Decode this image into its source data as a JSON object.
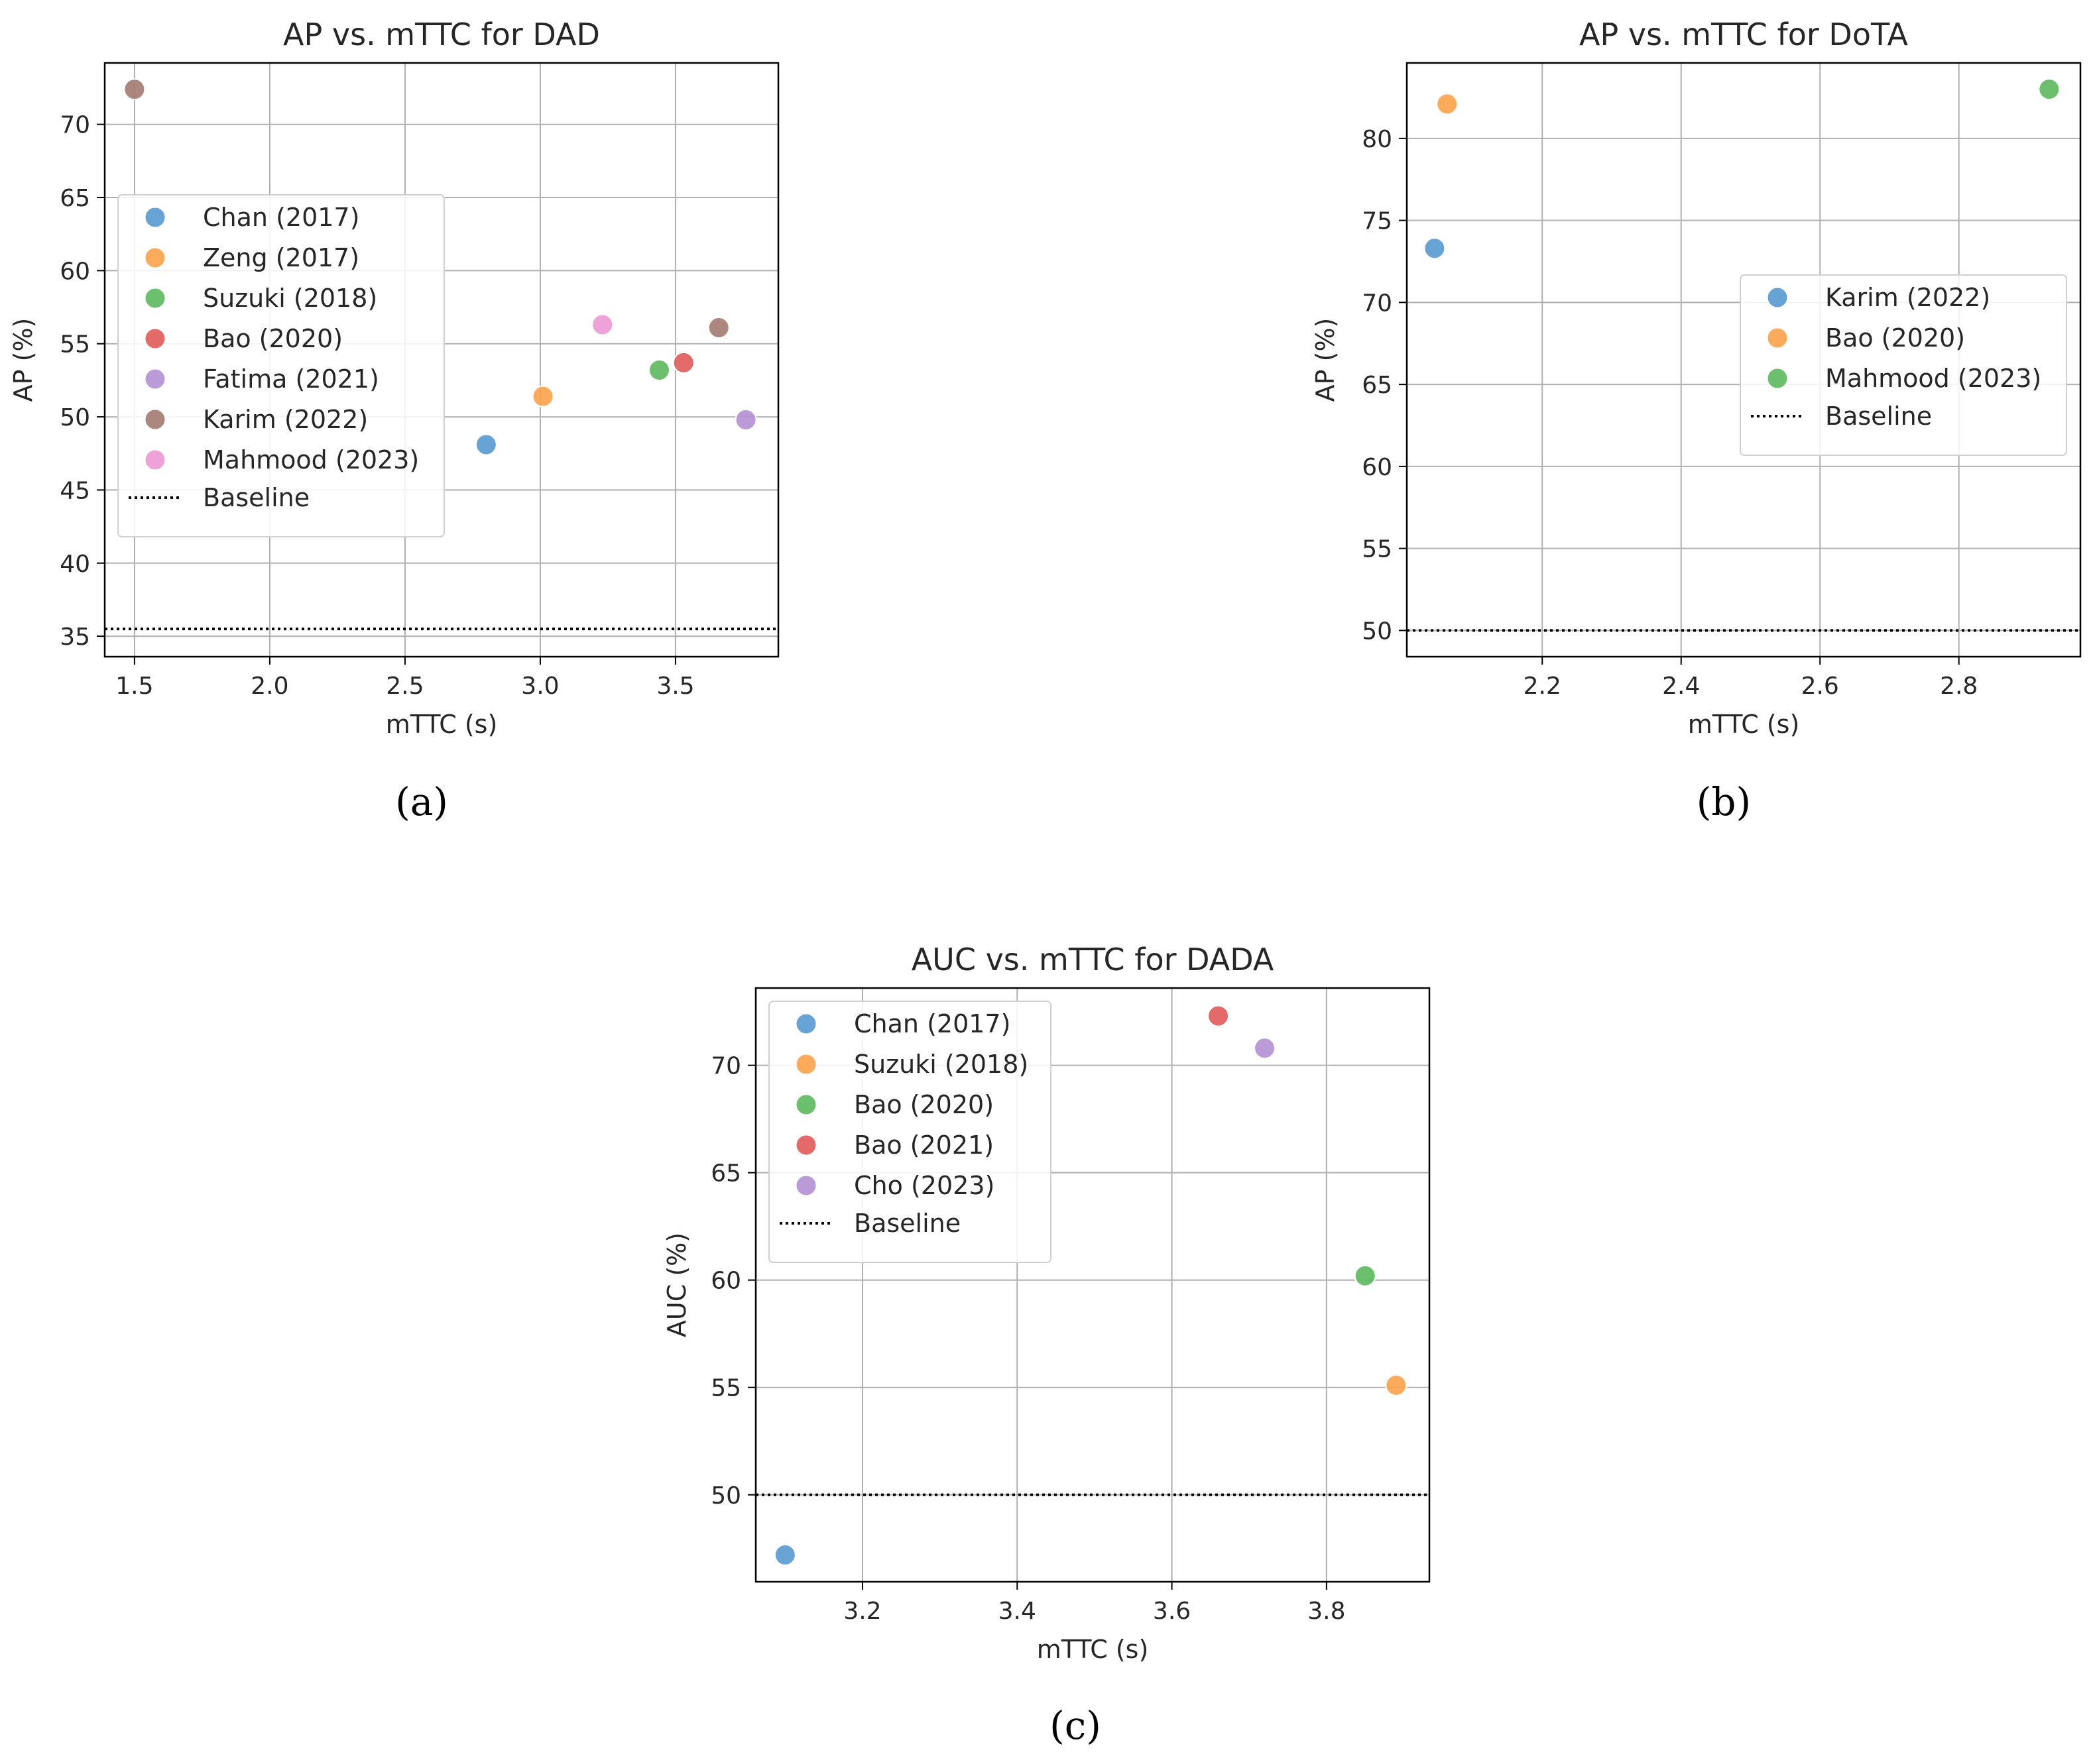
{
  "chart_data": [
    {
      "type": "scatter",
      "title": "AP vs. mTTC for DAD",
      "xlabel": "mTTC (s)",
      "ylabel": "AP (%)",
      "xlim": [
        1.39,
        3.88
      ],
      "ylim": [
        33.6,
        74.2
      ],
      "xticks": [
        1.5,
        2.0,
        2.5,
        3.0,
        3.5
      ],
      "xtick_labels": [
        "1.5",
        "2.0",
        "2.5",
        "3.0",
        "3.5"
      ],
      "yticks": [
        35,
        40,
        45,
        50,
        55,
        60,
        65,
        70
      ],
      "ytick_labels": [
        "35",
        "40",
        "45",
        "50",
        "55",
        "60",
        "65",
        "70"
      ],
      "grid": true,
      "legend_position": "center-left",
      "baseline_label": "Baseline",
      "baseline": 35.5,
      "caption": "(a)",
      "points": [
        {
          "name": "Chan (2017)",
          "x": 2.8,
          "y": 48.1,
          "color": "#5a9bd0"
        },
        {
          "name": "Zeng (2017)",
          "x": 3.01,
          "y": 51.4,
          "color": "#fca34d"
        },
        {
          "name": "Suzuki (2018)",
          "x": 3.44,
          "y": 53.2,
          "color": "#5fba5f"
        },
        {
          "name": "Bao (2020)",
          "x": 3.53,
          "y": 53.7,
          "color": "#e25c5c"
        },
        {
          "name": "Fatima (2021)",
          "x": 3.76,
          "y": 49.8,
          "color": "#b493d4"
        },
        {
          "name": "Karim (2022)",
          "x": 1.5,
          "y": 72.4,
          "color": "#a57d74"
        },
        {
          "name": "Karim (2022)",
          "x": 3.66,
          "y": 56.1,
          "color": "#a57d74"
        },
        {
          "name": "Mahmood (2023)",
          "x": 3.23,
          "y": 56.3,
          "color": "#ee9ad5"
        }
      ],
      "legend": [
        {
          "name": "Chan (2017)",
          "color": "#5a9bd0"
        },
        {
          "name": "Zeng (2017)",
          "color": "#fca34d"
        },
        {
          "name": "Suzuki (2018)",
          "color": "#5fba5f"
        },
        {
          "name": "Bao (2020)",
          "color": "#e25c5c"
        },
        {
          "name": "Fatima (2021)",
          "color": "#b493d4"
        },
        {
          "name": "Karim (2022)",
          "color": "#a57d74"
        },
        {
          "name": "Mahmood (2023)",
          "color": "#ee9ad5"
        }
      ]
    },
    {
      "type": "scatter",
      "title": "AP vs. mTTC for DoTA",
      "xlabel": "mTTC (s)",
      "ylabel": "AP (%)",
      "xlim": [
        2.005,
        2.975
      ],
      "ylim": [
        48.4,
        84.6
      ],
      "xticks": [
        2.2,
        2.4,
        2.6,
        2.8
      ],
      "xtick_labels": [
        "2.2",
        "2.4",
        "2.6",
        "2.8"
      ],
      "yticks": [
        50,
        55,
        60,
        65,
        70,
        75,
        80
      ],
      "ytick_labels": [
        "50",
        "55",
        "60",
        "65",
        "70",
        "75",
        "80"
      ],
      "grid": true,
      "legend_position": "center-right",
      "baseline_label": "Baseline",
      "baseline": 50.0,
      "caption": "(b)",
      "points": [
        {
          "name": "Karim (2022)",
          "x": 2.045,
          "y": 73.3,
          "color": "#5a9bd0"
        },
        {
          "name": "Bao (2020)",
          "x": 2.063,
          "y": 82.1,
          "color": "#fca34d"
        },
        {
          "name": "Mahmood (2023)",
          "x": 2.93,
          "y": 83.0,
          "color": "#5fba5f"
        }
      ],
      "legend": [
        {
          "name": "Karim (2022)",
          "color": "#5a9bd0"
        },
        {
          "name": "Bao (2020)",
          "color": "#fca34d"
        },
        {
          "name": "Mahmood (2023)",
          "color": "#5fba5f"
        }
      ]
    },
    {
      "type": "scatter",
      "title": "AUC vs. mTTC for DADA",
      "xlabel": "mTTC (s)",
      "ylabel": "AUC (%)",
      "xlim": [
        3.062,
        3.933
      ],
      "ylim": [
        45.95,
        73.6
      ],
      "xticks": [
        3.2,
        3.4,
        3.6,
        3.8
      ],
      "xtick_labels": [
        "3.2",
        "3.4",
        "3.6",
        "3.8"
      ],
      "yticks": [
        50,
        55,
        60,
        65,
        70
      ],
      "ytick_labels": [
        "50",
        "55",
        "60",
        "65",
        "70"
      ],
      "grid": true,
      "legend_position": "top-left",
      "baseline_label": "Baseline",
      "baseline": 50.0,
      "caption": "(c)",
      "points": [
        {
          "name": "Chan (2017)",
          "x": 3.1,
          "y": 47.2,
          "color": "#5a9bd0"
        },
        {
          "name": "Suzuki (2018)",
          "x": 3.89,
          "y": 55.1,
          "color": "#fca34d"
        },
        {
          "name": "Bao (2020)",
          "x": 3.85,
          "y": 60.2,
          "color": "#5fba5f"
        },
        {
          "name": "Bao (2021)",
          "x": 3.66,
          "y": 72.3,
          "color": "#e25c5c"
        },
        {
          "name": "Cho (2023)",
          "x": 3.72,
          "y": 70.8,
          "color": "#b493d4"
        }
      ],
      "legend": [
        {
          "name": "Chan (2017)",
          "color": "#5a9bd0"
        },
        {
          "name": "Suzuki (2018)",
          "color": "#fca34d"
        },
        {
          "name": "Bao (2020)",
          "color": "#5fba5f"
        },
        {
          "name": "Bao (2021)",
          "color": "#e25c5c"
        },
        {
          "name": "Cho (2023)",
          "color": "#b493d4"
        }
      ]
    }
  ]
}
